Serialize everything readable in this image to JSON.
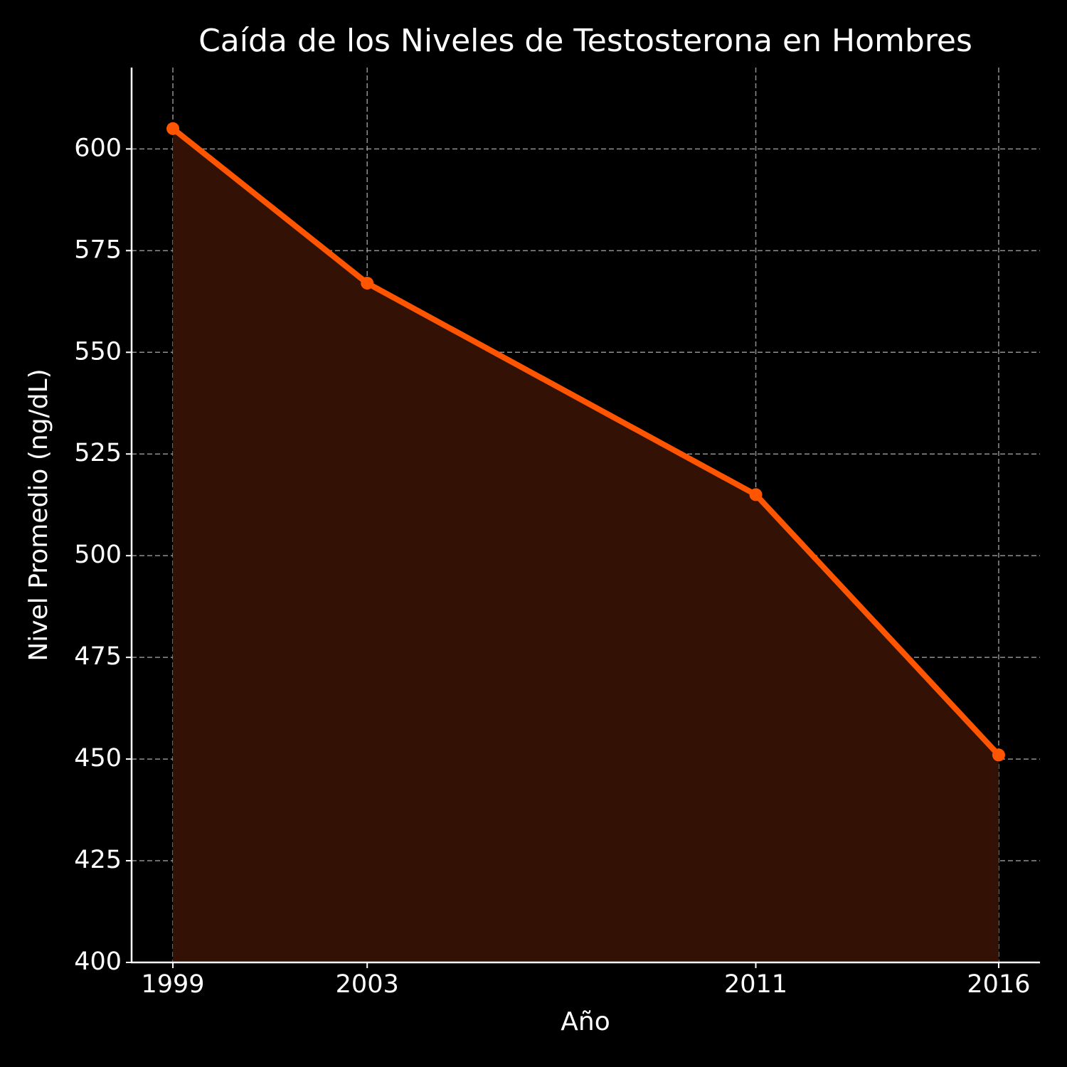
{
  "chart_data": {
    "type": "line",
    "title": "Caída de los Niveles de Testosterona en Hombres",
    "x_label": "Año",
    "y_label": "Nivel Promedio (ng/dL)",
    "x": [
      1999,
      2003,
      2011,
      2016
    ],
    "series": [
      {
        "name": "Nivel Promedio",
        "color": "#ff5500",
        "values": [
          605,
          567,
          515,
          451
        ]
      }
    ],
    "fill": true,
    "fill_color": "#331105",
    "xlim": [
      1998.15,
      2016.85
    ],
    "ylim": [
      400,
      620
    ],
    "xticks": [
      1999,
      2003,
      2011,
      2016
    ],
    "yticks": [
      400,
      425,
      450,
      475,
      500,
      525,
      550,
      575,
      600
    ],
    "grid": true
  }
}
